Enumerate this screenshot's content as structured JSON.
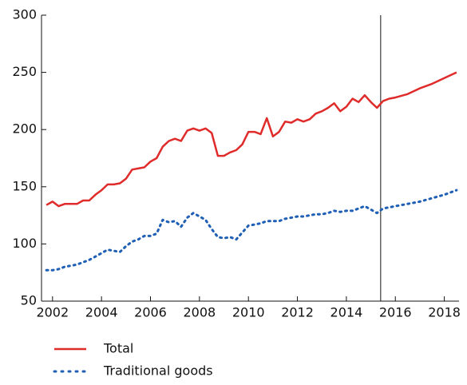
{
  "chart_data": {
    "type": "line",
    "x": [
      2001.75,
      2002.0,
      2002.25,
      2002.5,
      2002.75,
      2003.0,
      2003.25,
      2003.5,
      2003.75,
      2004.0,
      2004.25,
      2004.5,
      2004.75,
      2005.0,
      2005.25,
      2005.5,
      2005.75,
      2006.0,
      2006.25,
      2006.5,
      2006.75,
      2007.0,
      2007.25,
      2007.5,
      2007.75,
      2008.0,
      2008.25,
      2008.5,
      2008.75,
      2009.0,
      2009.25,
      2009.5,
      2009.75,
      2010.0,
      2010.25,
      2010.5,
      2010.75,
      2011.0,
      2011.25,
      2011.5,
      2011.75,
      2012.0,
      2012.25,
      2012.5,
      2012.75,
      2013.0,
      2013.25,
      2013.5,
      2013.75,
      2014.0,
      2014.25,
      2014.5,
      2014.75,
      2015.0,
      2015.25,
      2015.5,
      2015.75,
      2016.0,
      2016.5,
      2017.0,
      2017.5,
      2018.0,
      2018.5
    ],
    "series": [
      {
        "name": "Total",
        "color": "#e02b2b",
        "dash": false,
        "values": [
          134,
          137,
          133,
          135,
          135,
          135,
          138,
          138,
          143,
          147,
          152,
          152,
          153,
          157,
          165,
          166,
          167,
          172,
          175,
          185,
          190,
          192,
          190,
          199,
          201,
          199,
          201,
          197,
          177,
          177,
          180,
          182,
          187,
          198,
          198,
          196,
          210,
          194,
          198,
          207,
          206,
          209,
          207,
          209,
          214,
          216,
          219,
          223,
          216,
          220,
          227,
          224,
          230,
          224,
          219,
          225,
          227,
          228,
          231,
          236,
          240,
          245,
          250
        ]
      },
      {
        "name": "Traditional goods",
        "color": "#1f5fb4",
        "dash": true,
        "values": [
          77,
          77,
          78,
          80,
          81,
          82,
          84,
          86,
          89,
          92,
          95,
          94,
          93,
          98,
          102,
          104,
          107,
          107,
          109,
          121,
          119,
          120,
          115,
          123,
          127,
          124,
          121,
          113,
          106,
          105,
          106,
          104,
          110,
          116,
          117,
          118,
          120,
          120,
          120,
          122,
          123,
          124,
          124,
          125,
          126,
          126,
          127,
          129,
          128,
          129,
          129,
          131,
          133,
          130,
          127,
          131,
          132,
          133,
          135,
          137,
          140,
          143,
          147
        ]
      }
    ],
    "xlim": [
      2001.55,
      2018.6
    ],
    "xticks": [
      2002,
      2004,
      2006,
      2008,
      2010,
      2012,
      2014,
      2016,
      2018
    ],
    "ylim": [
      50,
      300
    ],
    "yticks": [
      50,
      100,
      150,
      200,
      250,
      300
    ],
    "vline": 2015.4,
    "legend": "bottom"
  }
}
